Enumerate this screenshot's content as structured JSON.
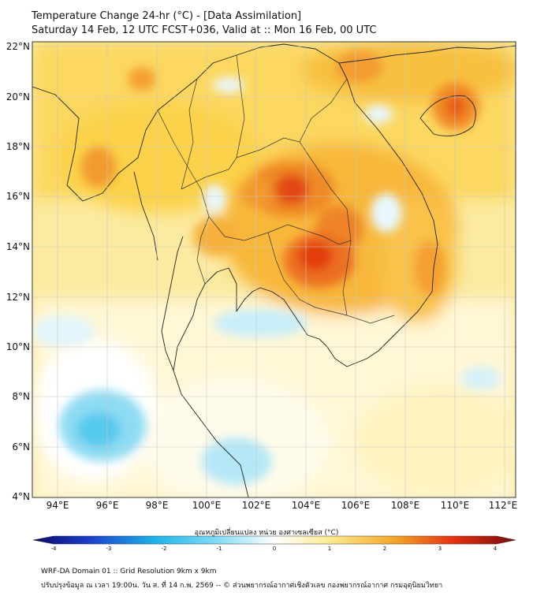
{
  "header": {
    "title_line1": "Temperature Change 24-hr (°C) - [Data Assimilation]",
    "title_line2": "Saturday 14 Feb, 12 UTC FCST+036, Valid at :: Mon 16 Feb, 00 UTC"
  },
  "axes": {
    "lat_labels": [
      "22°N",
      "20°N",
      "18°N",
      "16°N",
      "14°N",
      "12°N",
      "10°N",
      "8°N",
      "6°N",
      "4°N"
    ],
    "lon_labels": [
      "94°E",
      "96°E",
      "98°E",
      "100°E",
      "102°E",
      "104°E",
      "106°E",
      "108°E",
      "110°E",
      "112°E"
    ],
    "lat_range": [
      4,
      22
    ],
    "lon_range": [
      93,
      112.5
    ]
  },
  "colorbar": {
    "title": "อุณหภูมิเปลี่ยนแปลง หน่วย องศาเซลเซียส (°C)",
    "range": [
      -4,
      4
    ],
    "ticks": [
      "-4",
      "-3",
      "-2",
      "-1",
      "0",
      "1",
      "2",
      "3",
      "4"
    ]
  },
  "footer": {
    "line1": "WRF-DA Domain 01 :: Grid Resolution 9km x 9km",
    "line2": "ปรับปรุงข้อมูล ณ เวลา 19:00น. วัน ส. ที่ 14 ก.พ. 2569 -- © ส่วนพยากรณ์อากาศเชิงตัวเลข กองพยากรณ์อากาศ กรมอุตุนิยมวิทยา"
  },
  "colors": {
    "warm_max": "#e8300a",
    "warm_mid": "#f5a623",
    "warm_low": "#fde98a",
    "neutral": "#ffffff",
    "cool_low": "#c8ecf8",
    "cool_mid": "#6fd0f0"
  }
}
